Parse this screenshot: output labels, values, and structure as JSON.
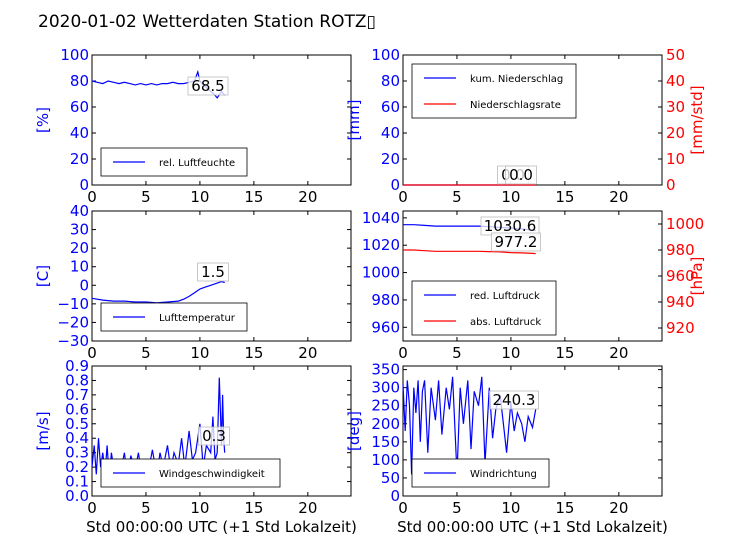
{
  "figure": {
    "title": "2020-01-02 Wetterdaten Station ROTZ▯"
  },
  "colors": {
    "blue": "#0000ff",
    "red": "#ff0000",
    "black": "#000000"
  },
  "chart_data": [
    {
      "type": "line",
      "panel": "humidity",
      "ylabel": "[%]",
      "xlabel": "",
      "xlim": [
        0,
        24
      ],
      "ylim": [
        0,
        100
      ],
      "xticks": [
        "0",
        "5",
        "10",
        "15",
        "20"
      ],
      "yticks": [
        "0",
        "20",
        "40",
        "60",
        "80",
        "100"
      ],
      "legend": [
        "rel. Luftfeuchte"
      ],
      "legend_position": "lower-left",
      "annotations": [
        "68.5"
      ],
      "series": [
        {
          "name": "rel. Luftfeuchte",
          "color": "blue",
          "x": [
            0,
            0.5,
            1,
            1.5,
            2,
            2.5,
            3,
            3.5,
            4,
            4.5,
            5,
            5.5,
            6,
            6.5,
            7,
            7.5,
            8,
            8.5,
            9,
            9.5,
            9.8,
            10,
            10.3,
            10.6,
            11,
            11.3,
            11.6,
            12,
            12.3
          ],
          "y": [
            80,
            79,
            78,
            80,
            79,
            78,
            79,
            78,
            77,
            78,
            77,
            78,
            77,
            78,
            78,
            79,
            78,
            78,
            79,
            80,
            87,
            80,
            77,
            75,
            72,
            70,
            67,
            72,
            69
          ]
        }
      ]
    },
    {
      "type": "line",
      "panel": "precipitation",
      "ylabel": "[mm]",
      "ylabel_right": "[mm/std]",
      "xlabel": "",
      "xlim": [
        0,
        24
      ],
      "ylim": [
        0,
        100
      ],
      "ylim_right": [
        0,
        50
      ],
      "xticks": [
        "0",
        "5",
        "10",
        "15",
        "20"
      ],
      "yticks": [
        "0",
        "20",
        "40",
        "60",
        "80",
        "100"
      ],
      "yticks_right": [
        "0",
        "10",
        "20",
        "30",
        "40",
        "50"
      ],
      "legend": [
        "kum. Niederschlag",
        "Niederschlagsrate"
      ],
      "legend_position": "upper-left",
      "annotations": [
        "0.0",
        "0.0"
      ],
      "series": [
        {
          "name": "kum. Niederschlag",
          "color": "blue",
          "x": [
            0,
            12.3
          ],
          "y": [
            0,
            0
          ]
        },
        {
          "name": "Niederschlagsrate",
          "color": "red",
          "axis": "right",
          "x": [
            0,
            12.3
          ],
          "y": [
            0,
            0
          ]
        }
      ]
    },
    {
      "type": "line",
      "panel": "temperature",
      "ylabel": "[C]",
      "xlabel": "",
      "xlim": [
        0,
        24
      ],
      "ylim": [
        -30,
        40
      ],
      "xticks": [
        "0",
        "5",
        "10",
        "15",
        "20"
      ],
      "yticks": [
        "−30",
        "−20",
        "−10",
        "0",
        "10",
        "20",
        "30",
        "40"
      ],
      "legend": [
        "Lufttemperatur"
      ],
      "legend_position": "lower-left",
      "annotations": [
        "1.5"
      ],
      "series": [
        {
          "name": "Lufttemperatur",
          "color": "blue",
          "x": [
            0,
            1,
            2,
            3,
            4,
            5,
            6,
            7,
            8,
            8.5,
            9,
            9.5,
            10,
            10.5,
            11,
            11.5,
            12,
            12.3
          ],
          "y": [
            -7,
            -8,
            -8.5,
            -8.5,
            -9,
            -9,
            -9.5,
            -9,
            -8.5,
            -7.5,
            -6,
            -4,
            -2,
            -1,
            0,
            1,
            2,
            1.5
          ]
        }
      ]
    },
    {
      "type": "line",
      "panel": "pressure",
      "ylabel": "",
      "ylabel_right": "[hPa]",
      "xlabel": "",
      "xlim": [
        0,
        24
      ],
      "ylim": [
        950,
        1045
      ],
      "ylim_right": [
        910,
        1010
      ],
      "xticks": [
        "0",
        "5",
        "10",
        "15",
        "20"
      ],
      "yticks": [
        "960",
        "980",
        "1000",
        "1020",
        "1040"
      ],
      "yticks_right": [
        "920",
        "940",
        "960",
        "980",
        "1000"
      ],
      "legend": [
        "red. Luftdruck",
        "abs. Luftdruck"
      ],
      "legend_position": "lower-left",
      "annotations": [
        "1030.6",
        "977.2"
      ],
      "series": [
        {
          "name": "red. Luftdruck",
          "color": "blue",
          "x": [
            0,
            1,
            2,
            3,
            4,
            5,
            6,
            7,
            8,
            9,
            10,
            11,
            12,
            12.3
          ],
          "y": [
            1035,
            1035,
            1034.5,
            1034,
            1034,
            1034,
            1034,
            1034,
            1033.5,
            1033,
            1032.5,
            1032,
            1031,
            1030.6
          ]
        },
        {
          "name": "abs. Luftdruck",
          "color": "red",
          "axis": "right",
          "x": [
            0,
            1,
            2,
            3,
            4,
            5,
            6,
            7,
            8,
            9,
            10,
            11,
            12,
            12.3
          ],
          "y": [
            980,
            980,
            979.5,
            979,
            979,
            979,
            979,
            979,
            978.8,
            978.5,
            978,
            977.8,
            977.4,
            977.2
          ]
        }
      ]
    },
    {
      "type": "line",
      "panel": "wind-speed",
      "ylabel": "[m/s]",
      "xlabel": "Std 00:00:00 UTC (+1 Std Lokalzeit)",
      "xlim": [
        0,
        24
      ],
      "ylim": [
        0,
        0.9
      ],
      "xticks": [
        "0",
        "5",
        "10",
        "15",
        "20"
      ],
      "yticks": [
        "0.0",
        "0.1",
        "0.2",
        "0.3",
        "0.4",
        "0.5",
        "0.6",
        "0.7",
        "0.8",
        "0.9"
      ],
      "legend": [
        "Windgeschwindigkeit"
      ],
      "legend_position": "lower-center",
      "annotations": [
        "0.3"
      ],
      "series": [
        {
          "name": "Windgeschwindigkeit",
          "color": "blue",
          "x": [
            0,
            0.2,
            0.4,
            0.6,
            0.8,
            1,
            1.2,
            1.4,
            1.6,
            1.8,
            2,
            2.3,
            2.6,
            3,
            3.3,
            3.6,
            4,
            4.3,
            4.6,
            5,
            5.3,
            5.6,
            6,
            6.3,
            6.6,
            7,
            7.3,
            7.6,
            8,
            8.3,
            8.6,
            9,
            9.3,
            9.6,
            10,
            10.3,
            10.6,
            11,
            11.2,
            11.4,
            11.6,
            11.8,
            12,
            12.1,
            12.2,
            12.3
          ],
          "y": [
            0.2,
            0.35,
            0.15,
            0.4,
            0.2,
            0.3,
            0.15,
            0.35,
            0.12,
            0.3,
            0.2,
            0.25,
            0.15,
            0.3,
            0.12,
            0.28,
            0.18,
            0.3,
            0.15,
            0.25,
            0.2,
            0.32,
            0.14,
            0.3,
            0.2,
            0.35,
            0.18,
            0.3,
            0.22,
            0.4,
            0.2,
            0.45,
            0.25,
            0.3,
            0.5,
            0.2,
            0.35,
            0.3,
            0.55,
            0.25,
            0.3,
            0.82,
            0.35,
            0.7,
            0.4,
            0.3
          ]
        }
      ]
    },
    {
      "type": "line",
      "panel": "wind-direction",
      "ylabel": "[deg]",
      "xlabel": "Std 00:00:00 UTC (+1 Std Lokalzeit)",
      "xlim": [
        0,
        24
      ],
      "ylim": [
        0,
        360
      ],
      "xticks": [
        "0",
        "5",
        "10",
        "15",
        "20"
      ],
      "yticks": [
        "0",
        "50",
        "100",
        "150",
        "200",
        "250",
        "300",
        "350"
      ],
      "legend": [
        "Windrichtung"
      ],
      "legend_position": "lower-left",
      "annotations": [
        "240.3"
      ],
      "series": [
        {
          "name": "Windrichtung",
          "color": "blue",
          "x": [
            0,
            0.2,
            0.4,
            0.6,
            0.8,
            1,
            1.2,
            1.4,
            1.6,
            1.8,
            2,
            2.3,
            2.6,
            3,
            3.3,
            3.6,
            4,
            4.3,
            4.6,
            5,
            5.3,
            5.6,
            6,
            6.3,
            6.6,
            7,
            7.3,
            7.6,
            8,
            8.3,
            8.6,
            9,
            9.3,
            9.6,
            10,
            10.3,
            10.6,
            11,
            11.3,
            11.6,
            12,
            12.3
          ],
          "y": [
            310,
            180,
            320,
            250,
            60,
            300,
            230,
            320,
            150,
            290,
            320,
            120,
            300,
            210,
            320,
            170,
            300,
            240,
            330,
            60,
            300,
            200,
            320,
            130,
            290,
            250,
            330,
            90,
            300,
            160,
            240,
            280,
            200,
            120,
            260,
            180,
            230,
            200,
            150,
            220,
            190,
            240
          ]
        }
      ]
    }
  ]
}
